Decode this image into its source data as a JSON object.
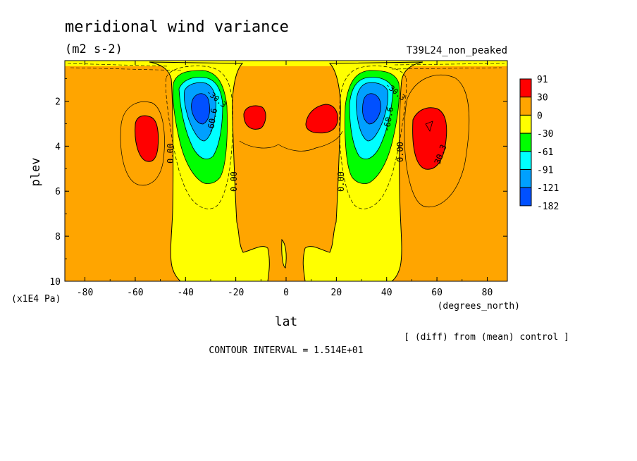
{
  "chart_data": {
    "type": "heatmap",
    "title": "meridional wind variance",
    "units": "(m2 s-2)",
    "run_label": "T39L24_non_peaked",
    "xlabel": "lat",
    "x_units": "(degrees_north)",
    "ylabel": "plev",
    "y_units": "(x1E4 Pa)",
    "xlim": [
      -88,
      88
    ],
    "ylim": [
      10,
      0.2
    ],
    "x_ticks": [
      "-80",
      "-60",
      "-40",
      "-20",
      "0",
      "20",
      "40",
      "60",
      "80"
    ],
    "y_ticks": [
      "2",
      "4",
      "6",
      "8",
      "10"
    ],
    "colorbar_levels": [
      "91",
      "30",
      "0",
      "-30",
      "-61",
      "-91",
      "-121",
      "-182"
    ],
    "colorbar_colors": [
      "#ff0000",
      "#ffa500",
      "#ffff00",
      "#00ff00",
      "#00ffff",
      "#00a0ff",
      "#0050ff"
    ],
    "contour_labels": [
      "0.00",
      "0.00",
      "0.00",
      "0.00",
      "-60.6",
      "-60.6",
      "30.3",
      "-30.3",
      "-30.3"
    ],
    "note": "[ (diff) from (mean) control ]",
    "contour_interval": "CONTOUR INTERVAL = 1.514E+01",
    "features": [
      {
        "kind": "min",
        "lat": -34,
        "plev": 2.3,
        "value": -182
      },
      {
        "kind": "min",
        "lat": 34,
        "plev": 2.3,
        "value": -182
      },
      {
        "kind": "max",
        "lat": -56,
        "plev": 3.6,
        "value": 91
      },
      {
        "kind": "max",
        "lat": 59,
        "plev": 3.5,
        "value": 91
      },
      {
        "kind": "max",
        "lat": -15,
        "plev": 2.7,
        "value": 91
      },
      {
        "kind": "max",
        "lat": 17,
        "plev": 2.7,
        "value": 91
      }
    ]
  }
}
